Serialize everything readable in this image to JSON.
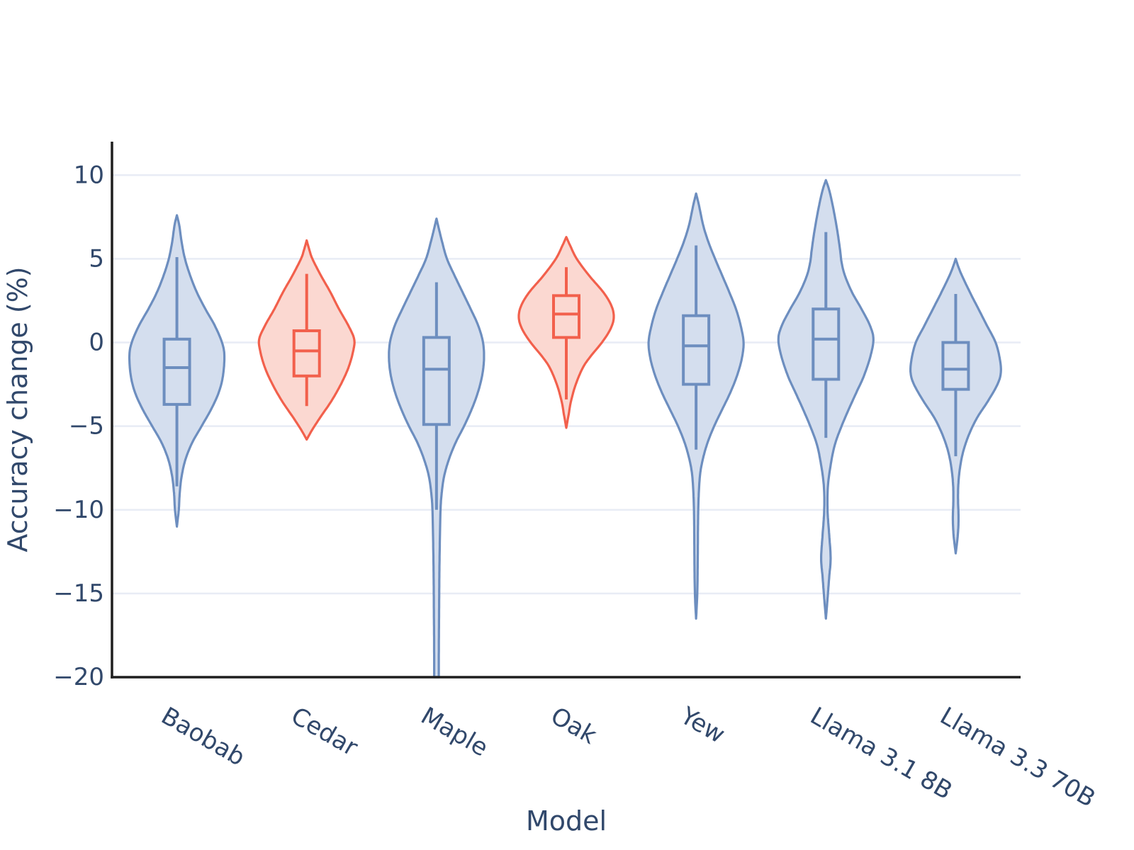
{
  "chart_data": {
    "type": "violin",
    "title": "",
    "xlabel": "Model",
    "ylabel": "Accuracy change (%)",
    "ylim": [
      -20,
      12
    ],
    "yticks": [
      10,
      5,
      0,
      -5,
      -10,
      -15,
      -20
    ],
    "grid": "horizontal-only",
    "legend": "none",
    "categories": [
      "Baobab",
      "Cedar",
      "Maple",
      "Oak",
      "Yew",
      "Llama 3.1 8B",
      "Llama 3.3 70B"
    ],
    "series": [
      {
        "label": "Baobab",
        "palette": "blue",
        "stats": {
          "whisker_high": 5.1,
          "q3": 0.2,
          "median": -1.5,
          "q1": -3.7,
          "whisker_low": -8.6
        },
        "range": [
          -11.0,
          7.6
        ],
        "profile": [
          [
            7.6,
            0.0
          ],
          [
            7.0,
            0.05
          ],
          [
            6.0,
            0.1
          ],
          [
            5.0,
            0.17
          ],
          [
            4.0,
            0.28
          ],
          [
            3.0,
            0.42
          ],
          [
            2.0,
            0.6
          ],
          [
            1.0,
            0.8
          ],
          [
            0.0,
            0.95
          ],
          [
            -0.8,
            1.0
          ],
          [
            -2.0,
            0.97
          ],
          [
            -3.0,
            0.88
          ],
          [
            -4.0,
            0.72
          ],
          [
            -5.0,
            0.52
          ],
          [
            -6.0,
            0.32
          ],
          [
            -7.0,
            0.18
          ],
          [
            -8.0,
            0.1
          ],
          [
            -9.0,
            0.06
          ],
          [
            -10.0,
            0.04
          ],
          [
            -11.0,
            0.0
          ]
        ]
      },
      {
        "label": "Cedar",
        "palette": "red",
        "stats": {
          "whisker_high": 4.1,
          "q3": 0.7,
          "median": -0.5,
          "q1": -2.0,
          "whisker_low": -3.8
        },
        "range": [
          -5.8,
          6.1
        ],
        "profile": [
          [
            6.1,
            0.0
          ],
          [
            5.5,
            0.06
          ],
          [
            5.0,
            0.12
          ],
          [
            4.0,
            0.3
          ],
          [
            3.0,
            0.5
          ],
          [
            2.0,
            0.68
          ],
          [
            1.0,
            0.88
          ],
          [
            0.2,
            1.0
          ],
          [
            -0.5,
            0.98
          ],
          [
            -1.5,
            0.88
          ],
          [
            -2.5,
            0.72
          ],
          [
            -3.5,
            0.52
          ],
          [
            -4.5,
            0.28
          ],
          [
            -5.2,
            0.12
          ],
          [
            -5.8,
            0.0
          ]
        ]
      },
      {
        "label": "Maple",
        "palette": "blue",
        "stats": {
          "whisker_high": 3.6,
          "q3": 0.3,
          "median": -1.6,
          "q1": -4.9,
          "whisker_low": -10.0
        },
        "range": [
          -20.0,
          7.4
        ],
        "profile": [
          [
            7.4,
            0.0
          ],
          [
            6.8,
            0.05
          ],
          [
            6.0,
            0.12
          ],
          [
            5.0,
            0.22
          ],
          [
            4.0,
            0.38
          ],
          [
            3.0,
            0.55
          ],
          [
            2.0,
            0.72
          ],
          [
            1.0,
            0.88
          ],
          [
            0.0,
            0.98
          ],
          [
            -1.0,
            1.0
          ],
          [
            -2.0,
            0.96
          ],
          [
            -3.0,
            0.87
          ],
          [
            -4.0,
            0.74
          ],
          [
            -5.0,
            0.58
          ],
          [
            -6.0,
            0.4
          ],
          [
            -7.0,
            0.26
          ],
          [
            -8.0,
            0.16
          ],
          [
            -9.0,
            0.11
          ],
          [
            -10.0,
            0.085
          ],
          [
            -12.0,
            0.07
          ],
          [
            -14.0,
            0.06
          ],
          [
            -16.0,
            0.055
          ],
          [
            -18.0,
            0.05
          ],
          [
            -20.0,
            0.048
          ]
        ]
      },
      {
        "label": "Oak",
        "palette": "red",
        "stats": {
          "whisker_high": 4.5,
          "q3": 2.8,
          "median": 1.7,
          "q1": 0.3,
          "whisker_low": -3.4
        },
        "range": [
          -5.1,
          6.3
        ],
        "profile": [
          [
            6.3,
            0.0
          ],
          [
            5.8,
            0.08
          ],
          [
            5.0,
            0.22
          ],
          [
            4.0,
            0.48
          ],
          [
            3.0,
            0.78
          ],
          [
            2.2,
            0.95
          ],
          [
            1.5,
            1.0
          ],
          [
            0.8,
            0.93
          ],
          [
            0.0,
            0.75
          ],
          [
            -0.8,
            0.52
          ],
          [
            -1.5,
            0.35
          ],
          [
            -2.5,
            0.2
          ],
          [
            -3.5,
            0.1
          ],
          [
            -4.3,
            0.05
          ],
          [
            -5.1,
            0.0
          ]
        ]
      },
      {
        "label": "Yew",
        "palette": "blue",
        "stats": {
          "whisker_high": 5.8,
          "q3": 1.6,
          "median": -0.2,
          "q1": -2.5,
          "whisker_low": -6.4
        },
        "range": [
          -16.5,
          8.9
        ],
        "profile": [
          [
            8.9,
            0.0
          ],
          [
            8.2,
            0.06
          ],
          [
            7.0,
            0.15
          ],
          [
            6.0,
            0.26
          ],
          [
            5.0,
            0.4
          ],
          [
            4.0,
            0.55
          ],
          [
            3.0,
            0.7
          ],
          [
            2.0,
            0.84
          ],
          [
            1.0,
            0.94
          ],
          [
            0.0,
            1.0
          ],
          [
            -1.0,
            0.96
          ],
          [
            -2.0,
            0.86
          ],
          [
            -3.0,
            0.72
          ],
          [
            -4.0,
            0.55
          ],
          [
            -5.0,
            0.38
          ],
          [
            -6.0,
            0.24
          ],
          [
            -7.0,
            0.14
          ],
          [
            -8.0,
            0.08
          ],
          [
            -9.5,
            0.05
          ],
          [
            -11.0,
            0.04
          ],
          [
            -13.0,
            0.035
          ],
          [
            -15.0,
            0.025
          ],
          [
            -16.5,
            0.0
          ]
        ]
      },
      {
        "label": "Llama 3.1 8B",
        "palette": "blue",
        "stats": {
          "whisker_high": 6.6,
          "q3": 2.0,
          "median": 0.2,
          "q1": -2.2,
          "whisker_low": -5.7
        },
        "range": [
          -16.5,
          9.7
        ],
        "profile": [
          [
            9.7,
            0.0
          ],
          [
            9.2,
            0.06
          ],
          [
            8.5,
            0.12
          ],
          [
            7.5,
            0.19
          ],
          [
            6.5,
            0.25
          ],
          [
            5.5,
            0.3
          ],
          [
            4.8,
            0.33
          ],
          [
            4.0,
            0.4
          ],
          [
            3.0,
            0.55
          ],
          [
            2.0,
            0.75
          ],
          [
            1.0,
            0.93
          ],
          [
            0.2,
            1.0
          ],
          [
            -0.8,
            0.94
          ],
          [
            -2.0,
            0.8
          ],
          [
            -3.0,
            0.64
          ],
          [
            -4.0,
            0.48
          ],
          [
            -5.0,
            0.33
          ],
          [
            -6.0,
            0.2
          ],
          [
            -7.0,
            0.12
          ],
          [
            -8.5,
            0.045
          ],
          [
            -10.0,
            0.035
          ],
          [
            -11.5,
            0.07
          ],
          [
            -12.9,
            0.1
          ],
          [
            -14.0,
            0.07
          ],
          [
            -15.3,
            0.035
          ],
          [
            -16.5,
            0.0
          ]
        ]
      },
      {
        "label": "Llama 3.3 70B",
        "palette": "blue",
        "stats": {
          "whisker_high": 2.9,
          "q3": 0.0,
          "median": -1.6,
          "q1": -2.8,
          "whisker_low": -6.8
        },
        "range": [
          -12.6,
          5.0
        ],
        "profile": [
          [
            5.0,
            0.0
          ],
          [
            4.2,
            0.1
          ],
          [
            3.0,
            0.3
          ],
          [
            2.0,
            0.48
          ],
          [
            1.0,
            0.66
          ],
          [
            0.0,
            0.84
          ],
          [
            -1.0,
            0.93
          ],
          [
            -1.8,
            0.95
          ],
          [
            -2.5,
            0.88
          ],
          [
            -3.5,
            0.68
          ],
          [
            -4.5,
            0.45
          ],
          [
            -5.5,
            0.28
          ],
          [
            -6.5,
            0.16
          ],
          [
            -7.5,
            0.09
          ],
          [
            -8.5,
            0.055
          ],
          [
            -9.5,
            0.05
          ],
          [
            -10.5,
            0.06
          ],
          [
            -11.5,
            0.045
          ],
          [
            -12.6,
            0.0
          ]
        ]
      }
    ],
    "colors": {
      "blue_stroke": "#6d8ebf",
      "blue_fill": "#d4deee",
      "red_stroke": "#f2604c",
      "red_fill": "#fbd8d1",
      "grid": "#e8ecf5",
      "spine": "#1f1f1f",
      "text": "#31486b"
    }
  }
}
